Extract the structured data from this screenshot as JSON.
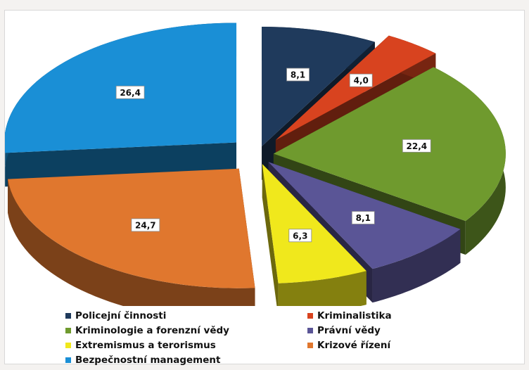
{
  "chart_data": {
    "type": "pie",
    "title": "",
    "slices": [
      {
        "label": "Policejní činnosti",
        "value": 8.1,
        "value_label": "8,1",
        "color": "#1f3a5c"
      },
      {
        "label": "Kriminalistika",
        "value": 4.0,
        "value_label": "4,0",
        "color": "#d8431f"
      },
      {
        "label": "Kriminologie a forenzní vědy",
        "value": 22.4,
        "value_label": "22,4",
        "color": "#6f9a2e"
      },
      {
        "label": "Právní vědy",
        "value": 8.1,
        "value_label": "8,1",
        "color": "#5a5596"
      },
      {
        "label": "Extremismus a terorismus",
        "value": 6.3,
        "value_label": "6,3",
        "color": "#f0e81c"
      },
      {
        "label": "Krizové řízení",
        "value": 24.7,
        "value_label": "24,7",
        "color": "#e0772e"
      },
      {
        "label": "Bezpečnostní management",
        "value": 26.4,
        "value_label": "26,4",
        "color": "#1a8fd6"
      }
    ],
    "style": "3d-exploded",
    "legend_position": "bottom"
  },
  "legend_layout": [
    [
      "Policejní činnosti",
      "Kriminalistika"
    ],
    [
      "Kriminologie a forenzní vědy",
      "Právní vědy"
    ],
    [
      "Extremismus a terorismus",
      "Krizové řízení"
    ],
    [
      "Bezpečnostní management"
    ]
  ]
}
